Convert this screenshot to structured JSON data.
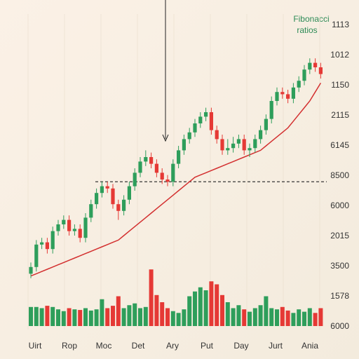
{
  "chart_data": {
    "type": "candlestick",
    "annotation": [
      "Fibonacci",
      "ratios"
    ],
    "categories": [
      "Uirt",
      "Rop",
      "Moc",
      "Det",
      "Ary",
      "Put",
      "Day",
      "Jurt",
      "Ania"
    ],
    "right_axis_labels": [
      "1113",
      "1012",
      "1150",
      "2115",
      "6145",
      "8500",
      "6000",
      "2015",
      "3500",
      "1578",
      "6000"
    ],
    "ylim": [
      0,
      100
    ],
    "volume_lim": [
      0,
      100
    ],
    "up_color": "#2e9e5b",
    "down_color": "#e53935",
    "ma_color": "#d32f2f",
    "open": [
      3,
      6,
      16,
      17,
      14,
      22,
      25,
      27,
      22,
      23,
      19,
      28,
      34,
      39,
      42,
      41,
      34,
      31,
      36,
      42,
      48,
      53,
      55,
      52,
      48,
      45,
      44,
      52,
      58,
      63,
      66,
      70,
      73,
      75,
      67,
      63,
      58,
      59,
      61,
      63,
      58,
      59,
      63,
      67,
      72,
      80,
      84,
      83,
      81,
      86,
      89,
      94,
      97,
      95
    ],
    "high": [
      8,
      18,
      19,
      19,
      24,
      27,
      29,
      29,
      25,
      25,
      30,
      36,
      41,
      44,
      44,
      43,
      36,
      38,
      44,
      50,
      55,
      58,
      57,
      54,
      50,
      47,
      54,
      60,
      65,
      68,
      72,
      75,
      77,
      77,
      69,
      65,
      63,
      64,
      65,
      65,
      61,
      65,
      69,
      74,
      82,
      86,
      86,
      85,
      88,
      91,
      96,
      99,
      99,
      97
    ],
    "low": [
      1,
      4,
      14,
      12,
      12,
      20,
      23,
      20,
      20,
      17,
      17,
      26,
      32,
      37,
      39,
      32,
      27,
      29,
      34,
      40,
      46,
      51,
      50,
      46,
      43,
      42,
      42,
      50,
      56,
      61,
      64,
      68,
      71,
      65,
      61,
      56,
      56,
      57,
      59,
      56,
      55,
      57,
      61,
      65,
      70,
      78,
      81,
      79,
      79,
      84,
      87,
      92,
      93,
      90
    ],
    "close": [
      6,
      16,
      17,
      14,
      22,
      25,
      27,
      22,
      23,
      19,
      28,
      34,
      39,
      42,
      41,
      34,
      31,
      36,
      42,
      48,
      53,
      55,
      52,
      48,
      45,
      44,
      52,
      58,
      63,
      66,
      70,
      73,
      75,
      67,
      63,
      58,
      59,
      61,
      63,
      58,
      59,
      63,
      67,
      72,
      80,
      84,
      83,
      81,
      86,
      89,
      94,
      97,
      95,
      92
    ],
    "volume": [
      32,
      32,
      30,
      34,
      32,
      28,
      25,
      30,
      28,
      27,
      30,
      26,
      28,
      45,
      30,
      34,
      50,
      30,
      35,
      38,
      30,
      32,
      95,
      52,
      40,
      30,
      25,
      22,
      28,
      50,
      58,
      65,
      60,
      75,
      70,
      52,
      40,
      30,
      35,
      28,
      24,
      30,
      35,
      50,
      30,
      28,
      32,
      26,
      22,
      28,
      24,
      30,
      22,
      30
    ],
    "moving_average": [
      2,
      3,
      4,
      5,
      6,
      7,
      8,
      9,
      10,
      11,
      12,
      13,
      14,
      15,
      16,
      17,
      18,
      20,
      22,
      24,
      26,
      28,
      30,
      32,
      34,
      36,
      38,
      40,
      42,
      44,
      46,
      47,
      48,
      49,
      50,
      51,
      52,
      53,
      54,
      55,
      56,
      57,
      58,
      60,
      62,
      64,
      66,
      68,
      71,
      74,
      77,
      80,
      84,
      88
    ],
    "reference_line": 44
  }
}
